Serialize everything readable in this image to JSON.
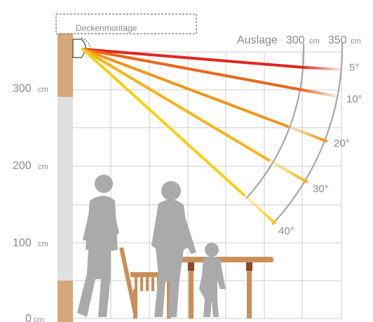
{
  "mount_label": "Deckenmontage",
  "reach_label": "Auslage",
  "reach_values": [
    {
      "value": "300",
      "unit": "cm"
    },
    {
      "value": "350",
      "unit": "cm"
    }
  ],
  "height_ticks": [
    {
      "value": "300",
      "unit": "cm"
    },
    {
      "value": "200",
      "unit": "cm"
    },
    {
      "value": "100",
      "unit": "cm"
    },
    {
      "value": "0",
      "unit": "cm"
    }
  ],
  "angles": [
    {
      "label": "5°",
      "deg": 5,
      "color": "#e0261f"
    },
    {
      "label": "10°",
      "deg": 10,
      "color": "#e8681c"
    },
    {
      "label": "20°",
      "deg": 20,
      "color": "#f0961a"
    },
    {
      "label": "30°",
      "deg": 30,
      "color": "#f5b41a"
    },
    {
      "label": "40°",
      "deg": 40,
      "color": "#f7cf14"
    }
  ]
}
